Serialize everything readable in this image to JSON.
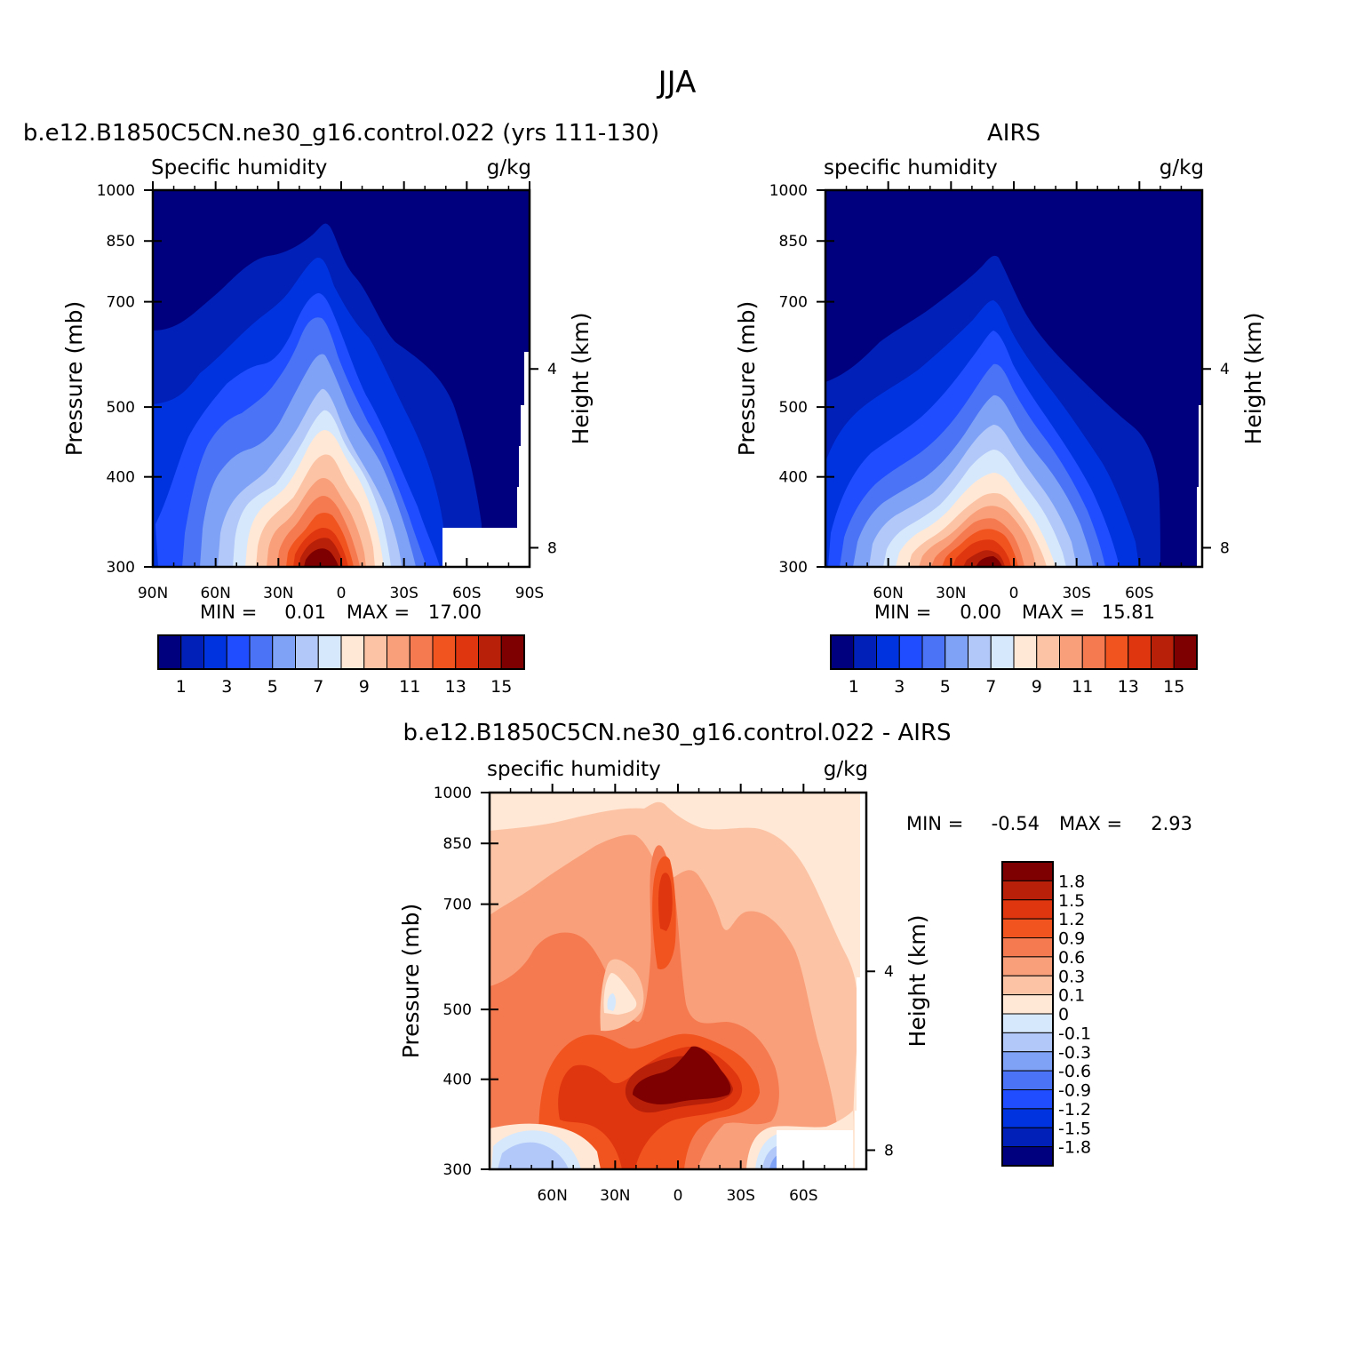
{
  "figure": {
    "title": "JJA"
  },
  "chart_data": [
    {
      "id": "model",
      "type": "heatmap",
      "panel_title": "b.e12.B1850C5CN.ne30_g16.control.022 (yrs 111-130)",
      "left_label": "Specific humidity",
      "units_label": "g/kg",
      "ylabel": "Pressure (mb)",
      "y2label": "Height (km)",
      "x_ticks": [
        "90N",
        "60N",
        "30N",
        "0",
        "30S",
        "60S",
        "90S"
      ],
      "y_ticks": [
        "300",
        "400",
        "500",
        "700",
        "850",
        "1000"
      ],
      "y2_ticks": [
        "8",
        "4"
      ],
      "stats": {
        "min_label": "MIN =",
        "min": "0.01",
        "max_label": "MAX =",
        "max": "17.00"
      },
      "colorbar_labels": [
        "1",
        "3",
        "5",
        "7",
        "9",
        "11",
        "13",
        "15"
      ],
      "xlim": [
        90,
        -90
      ],
      "ylim": [
        1000,
        300
      ],
      "y_log": true
    },
    {
      "id": "obs",
      "type": "heatmap",
      "panel_title": "AIRS",
      "left_label": "specific humidity",
      "units_label": "g/kg",
      "ylabel": "Pressure (mb)",
      "y2label": "Height (km)",
      "x_ticks": [
        "60N",
        "30N",
        "0",
        "30S",
        "60S"
      ],
      "y_ticks": [
        "300",
        "400",
        "500",
        "700",
        "850",
        "1000"
      ],
      "y2_ticks": [
        "8",
        "4"
      ],
      "stats": {
        "min_label": "MIN =",
        "min": "0.00",
        "max_label": "MAX =",
        "max": "15.81"
      },
      "colorbar_labels": [
        "1",
        "3",
        "5",
        "7",
        "9",
        "11",
        "13",
        "15"
      ],
      "xlim": [
        90,
        -90
      ],
      "ylim": [
        1000,
        300
      ],
      "y_log": true
    },
    {
      "id": "diff",
      "type": "heatmap",
      "panel_title": "b.e12.B1850C5CN.ne30_g16.control.022 - AIRS",
      "left_label": "specific humidity",
      "units_label": "g/kg",
      "ylabel": "Pressure (mb)",
      "y2label": "Height (km)",
      "x_ticks": [
        "60N",
        "30N",
        "0",
        "30S",
        "60S"
      ],
      "y_ticks": [
        "300",
        "400",
        "500",
        "700",
        "850",
        "1000"
      ],
      "y2_ticks": [
        "8",
        "4"
      ],
      "stats": {
        "min_label": "MIN =",
        "min": "-0.54",
        "max_label": "MAX =",
        "max": "2.93"
      },
      "colorbar_labels": [
        "1.8",
        "1.5",
        "1.2",
        "0.9",
        "0.6",
        "0.3",
        "0.1",
        "0",
        "-0.1",
        "-0.3",
        "-0.6",
        "-0.9",
        "-1.2",
        "-1.5",
        "-1.8"
      ],
      "xlim": [
        90,
        -90
      ],
      "ylim": [
        1000,
        300
      ],
      "y_log": true
    }
  ],
  "colors": {
    "abs_scale": [
      "#00007f",
      "#0020b8",
      "#0033e0",
      "#1f4dff",
      "#4a74f5",
      "#7fa2f7",
      "#b2c8f8",
      "#d6e8fc",
      "#ffe8d6",
      "#fcc4a5",
      "#f9a07a",
      "#f67a50",
      "#f2541f",
      "#e0360f",
      "#b82009",
      "#7f0000"
    ],
    "diff_scale": [
      "#7f0000",
      "#b82009",
      "#e0360f",
      "#f2541f",
      "#f67a50",
      "#f9a07a",
      "#fcc4a5",
      "#ffe8d6",
      "#d6e8fc",
      "#b2c8f8",
      "#7fa2f7",
      "#4a74f5",
      "#1f4dff",
      "#0033e0",
      "#0020b8",
      "#00007f"
    ]
  }
}
